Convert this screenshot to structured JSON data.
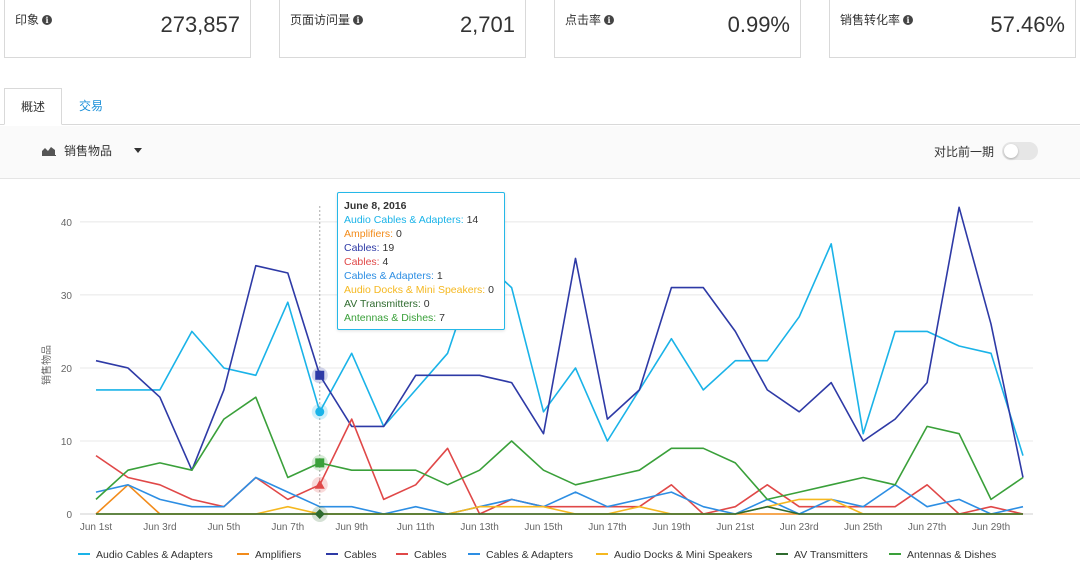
{
  "kpis": [
    {
      "label": "印象",
      "value": "273,857"
    },
    {
      "label": "页面访问量",
      "value": "2,701"
    },
    {
      "label": "点击率",
      "value": "0.99%"
    },
    {
      "label": "销售转化率",
      "value": "57.46%"
    }
  ],
  "tabs": [
    {
      "label": "概述",
      "active": true
    },
    {
      "label": "交易",
      "active": false
    }
  ],
  "toolbar": {
    "metric_label": "销售物品",
    "compare_label": "对比前一期",
    "compare_on": false
  },
  "tooltip": {
    "title": "June 8, 2016",
    "rows": [
      {
        "name": "Audio Cables & Adapters",
        "value": "14",
        "color": "#1ab3e8"
      },
      {
        "name": "Amplifiers",
        "value": "0",
        "color": "#f28b1a"
      },
      {
        "name": "Cables",
        "value": "19",
        "color": "#2e3aa6"
      },
      {
        "name": "Cables",
        "value": "4",
        "color": "#e04848"
      },
      {
        "name": "Cables & Adapters",
        "value": "1",
        "color": "#2d8ee3"
      },
      {
        "name": "Audio Docks & Mini Speakers",
        "value": "0",
        "color": "#f5b820"
      },
      {
        "name": "AV Transmitters",
        "value": "0",
        "color": "#2f6b2f"
      },
      {
        "name": "Antennas & Dishes",
        "value": "7",
        "color": "#3aa03a"
      }
    ]
  },
  "chart_data": {
    "type": "line",
    "ylabel": "销售物品",
    "ylim": [
      0,
      43
    ],
    "yticks": [
      0,
      10,
      20,
      30,
      40
    ],
    "x": [
      "Jun 1st",
      "Jun 2nd",
      "Jun 3rd",
      "Jun 4th",
      "Jun 5th",
      "Jun 6th",
      "Jun 7th",
      "Jun 8th",
      "Jun 9th",
      "Jun 10th",
      "Jun 11th",
      "Jun 12th",
      "Jun 13th",
      "Jun 14th",
      "Jun 15th",
      "Jun 16th",
      "Jun 17th",
      "Jun 18th",
      "Jun 19th",
      "Jun 20th",
      "Jun 21st",
      "Jun 22nd",
      "Jun 23rd",
      "Jun 24th",
      "Jun 25th",
      "Jun 26th",
      "Jun 27th",
      "Jun 28th",
      "Jun 29th",
      "Jun 30th"
    ],
    "xtick_labels": [
      "Jun 1st",
      "Jun 3rd",
      "Jun 5th",
      "Jun 7th",
      "Jun 9th",
      "Jun 11th",
      "Jun 13th",
      "Jun 15th",
      "Jun 17th",
      "Jun 19th",
      "Jun 21st",
      "Jun 23rd",
      "Jun 25th",
      "Jun 27th",
      "Jun 29th"
    ],
    "highlight_index": 7,
    "grid": true,
    "legend_position": "bottom",
    "series": [
      {
        "name": "Audio Cables & Adapters",
        "color": "#1ab3e8",
        "marker": "circle",
        "values": [
          17,
          17,
          17,
          25,
          20,
          19,
          29,
          14,
          22,
          12,
          17,
          22,
          35,
          31,
          14,
          20,
          10,
          17,
          24,
          17,
          21,
          21,
          27,
          37,
          11,
          25,
          25,
          23,
          22,
          8
        ]
      },
      {
        "name": "Amplifiers",
        "color": "#f28b1a",
        "marker": "none",
        "values": [
          0,
          4,
          0,
          0,
          0,
          0,
          0,
          0,
          0,
          0,
          0,
          0,
          0,
          0,
          0,
          0,
          0,
          0,
          0,
          0,
          0,
          0,
          0,
          0,
          0,
          0,
          0,
          0,
          0,
          0
        ]
      },
      {
        "name": "Cables",
        "color": "#2e3aa6",
        "marker": "square",
        "values": [
          21,
          20,
          16,
          6,
          17,
          34,
          33,
          19,
          12,
          12,
          19,
          19,
          19,
          18,
          11,
          35,
          13,
          17,
          31,
          31,
          25,
          17,
          14,
          18,
          10,
          13,
          18,
          42,
          26,
          5
        ]
      },
      {
        "name": "Cables",
        "color": "#e04848",
        "marker": "triangle",
        "values": [
          8,
          5,
          4,
          2,
          1,
          5,
          2,
          4,
          13,
          2,
          4,
          9,
          0,
          2,
          1,
          1,
          1,
          1,
          4,
          0,
          1,
          4,
          1,
          1,
          1,
          1,
          4,
          0,
          1,
          0
        ]
      },
      {
        "name": "Cables & Adapters",
        "color": "#2d8ee3",
        "marker": "none",
        "values": [
          3,
          4,
          2,
          1,
          1,
          5,
          3,
          1,
          1,
          0,
          1,
          0,
          1,
          2,
          1,
          3,
          1,
          2,
          3,
          1,
          0,
          2,
          0,
          2,
          1,
          4,
          1,
          2,
          0,
          1
        ]
      },
      {
        "name": "Audio Docks & Mini Speakers",
        "color": "#f5b820",
        "marker": "none",
        "values": [
          0,
          0,
          0,
          0,
          0,
          0,
          1,
          0,
          0,
          0,
          0,
          0,
          1,
          1,
          1,
          0,
          0,
          1,
          0,
          0,
          0,
          1,
          2,
          2,
          0,
          0,
          0,
          0,
          0,
          0
        ]
      },
      {
        "name": "AV Transmitters",
        "color": "#2f6b2f",
        "marker": "diamond",
        "values": [
          0,
          0,
          0,
          0,
          0,
          0,
          0,
          0,
          0,
          0,
          0,
          0,
          0,
          0,
          0,
          0,
          0,
          0,
          0,
          0,
          0,
          1,
          0,
          0,
          0,
          0,
          0,
          0,
          0,
          0
        ]
      },
      {
        "name": "Antennas & Dishes",
        "color": "#3aa03a",
        "marker": "square",
        "values": [
          2,
          6,
          7,
          6,
          13,
          16,
          5,
          7,
          6,
          6,
          6,
          4,
          6,
          10,
          6,
          4,
          5,
          6,
          9,
          9,
          7,
          2,
          3,
          4,
          5,
          4,
          12,
          11,
          2,
          5
        ]
      }
    ]
  }
}
